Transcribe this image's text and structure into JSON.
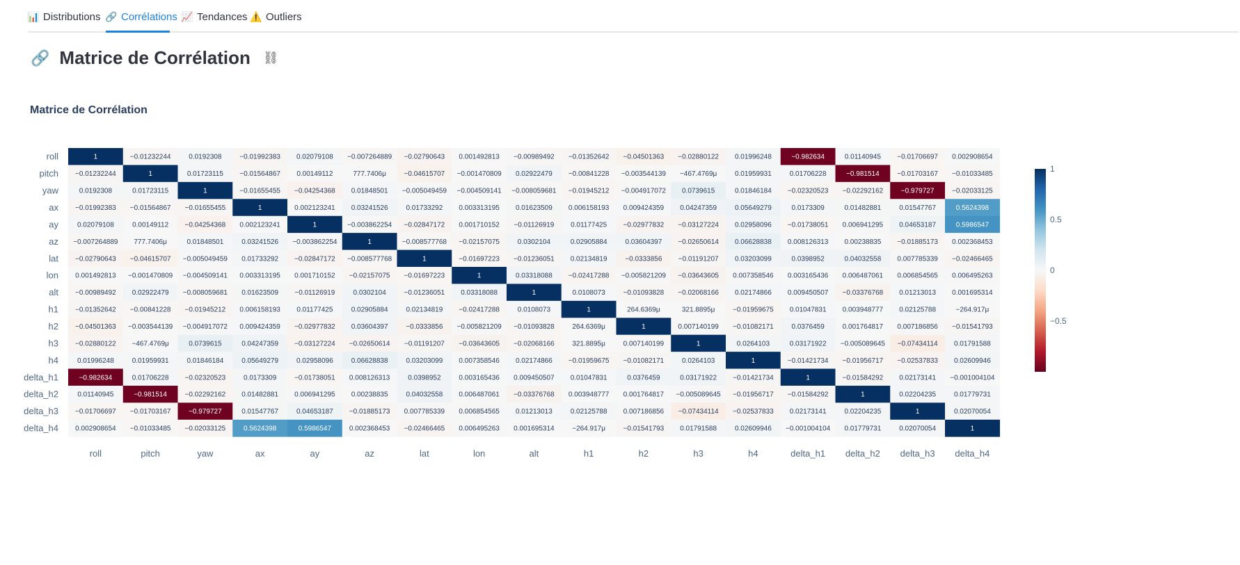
{
  "tabs": [
    {
      "label": "Distributions",
      "icon": "bar-chart-icon",
      "glyph": "📊",
      "active": false
    },
    {
      "label": "Corrélations",
      "icon": "link-icon",
      "glyph": "🔗",
      "active": true
    },
    {
      "label": "Tendances",
      "icon": "trend-chart-icon",
      "glyph": "📈",
      "active": false
    },
    {
      "label": "Outliers",
      "icon": "warning-icon",
      "glyph": "⚠️",
      "active": false
    }
  ],
  "page": {
    "title": "Matrice de Corrélation",
    "title_glyph": "🔗",
    "anchor_glyph": "⛓"
  },
  "chart_data": {
    "type": "heatmap",
    "title": "Matrice de Corrélation",
    "variables": [
      "roll",
      "pitch",
      "yaw",
      "ax",
      "ay",
      "az",
      "lat",
      "lon",
      "alt",
      "h1",
      "h2",
      "h3",
      "h4",
      "delta_h1",
      "delta_h2",
      "delta_h3",
      "delta_h4"
    ],
    "labels": [
      [
        "1",
        "−0.01232244",
        "0.0192308",
        "−0.01992383",
        "0.02079108",
        "−0.007264889",
        "−0.02790643",
        "0.001492813",
        "−0.00989492",
        "−0.01352642",
        "−0.04501363",
        "−0.02880122",
        "0.01996248",
        "−0.982634",
        "0.01140945",
        "−0.01706697",
        "0.002908654"
      ],
      [
        "−0.01232244",
        "1",
        "0.01723115",
        "−0.01564867",
        "0.00149112",
        "777.7406μ",
        "−0.04615707",
        "−0.001470809",
        "0.02922479",
        "−0.00841228",
        "−0.003544139",
        "−467.4769μ",
        "0.01959931",
        "0.01706228",
        "−0.981514",
        "−0.01703167",
        "−0.01033485"
      ],
      [
        "0.0192308",
        "0.01723115",
        "1",
        "−0.01655455",
        "−0.04254368",
        "0.01848501",
        "−0.005049459",
        "−0.004509141",
        "−0.008059681",
        "−0.01945212",
        "−0.004917072",
        "0.0739615",
        "0.01846184",
        "−0.02320523",
        "−0.02292162",
        "−0.979727",
        "−0.02033125"
      ],
      [
        "−0.01992383",
        "−0.01564867",
        "−0.01655455",
        "1",
        "0.002123241",
        "0.03241526",
        "0.01733292",
        "0.003313195",
        "0.01623509",
        "0.006158193",
        "0.009424359",
        "0.04247359",
        "0.05649279",
        "0.0173309",
        "0.01482881",
        "0.01547767",
        "0.5624398"
      ],
      [
        "0.02079108",
        "0.00149112",
        "−0.04254368",
        "0.002123241",
        "1",
        "−0.003862254",
        "−0.02847172",
        "0.001710152",
        "−0.01126919",
        "0.01177425",
        "−0.02977832",
        "−0.03127224",
        "0.02958096",
        "−0.01738051",
        "0.006941295",
        "0.04653187",
        "0.5986547"
      ],
      [
        "−0.007264889",
        "777.7406μ",
        "0.01848501",
        "0.03241526",
        "−0.003862254",
        "1",
        "−0.008577768",
        "−0.02157075",
        "0.0302104",
        "0.02905884",
        "0.03604397",
        "−0.02650614",
        "0.06628838",
        "0.008126313",
        "0.00238835",
        "−0.01885173",
        "0.002368453"
      ],
      [
        "−0.02790643",
        "−0.04615707",
        "−0.005049459",
        "0.01733292",
        "−0.02847172",
        "−0.008577768",
        "1",
        "−0.01697223",
        "−0.01236051",
        "0.02134819",
        "−0.0333856",
        "−0.01191207",
        "0.03203099",
        "0.0398952",
        "0.04032558",
        "0.007785339",
        "−0.02466465"
      ],
      [
        "0.001492813",
        "−0.001470809",
        "−0.004509141",
        "0.003313195",
        "0.001710152",
        "−0.02157075",
        "−0.01697223",
        "1",
        "0.03318088",
        "−0.02417288",
        "−0.005821209",
        "−0.03643605",
        "0.007358546",
        "0.003165436",
        "0.006487061",
        "0.006854565",
        "0.006495263"
      ],
      [
        "−0.00989492",
        "0.02922479",
        "−0.008059681",
        "0.01623509",
        "−0.01126919",
        "0.0302104",
        "−0.01236051",
        "0.03318088",
        "1",
        "0.0108073",
        "−0.01093828",
        "−0.02068166",
        "0.02174866",
        "0.009450507",
        "−0.03376768",
        "0.01213013",
        "0.001695314"
      ],
      [
        "−0.01352642",
        "−0.00841228",
        "−0.01945212",
        "0.006158193",
        "0.01177425",
        "0.02905884",
        "0.02134819",
        "−0.02417288",
        "0.0108073",
        "1",
        "264.6369μ",
        "321.8895μ",
        "−0.01959675",
        "0.01047831",
        "0.003948777",
        "0.02125788",
        "−264.917μ"
      ],
      [
        "−0.04501363",
        "−0.003544139",
        "−0.004917072",
        "0.009424359",
        "−0.02977832",
        "0.03604397",
        "−0.0333856",
        "−0.005821209",
        "−0.01093828",
        "264.6369μ",
        "1",
        "0.007140199",
        "−0.01082171",
        "0.0376459",
        "0.001764817",
        "0.007186856",
        "−0.01541793"
      ],
      [
        "−0.02880122",
        "−467.4769μ",
        "0.0739615",
        "0.04247359",
        "−0.03127224",
        "−0.02650614",
        "−0.01191207",
        "−0.03643605",
        "−0.02068166",
        "321.8895μ",
        "0.007140199",
        "1",
        "0.0264103",
        "0.03171922",
        "−0.005089645",
        "−0.07434114",
        "0.01791588"
      ],
      [
        "0.01996248",
        "0.01959931",
        "0.01846184",
        "0.05649279",
        "0.02958096",
        "0.06628838",
        "0.03203099",
        "0.007358546",
        "0.02174866",
        "−0.01959675",
        "−0.01082171",
        "0.0264103",
        "1",
        "−0.01421734",
        "−0.01956717",
        "−0.02537833",
        "0.02609946"
      ],
      [
        "−0.982634",
        "0.01706228",
        "−0.02320523",
        "0.0173309",
        "−0.01738051",
        "0.008126313",
        "0.0398952",
        "0.003165436",
        "0.009450507",
        "0.01047831",
        "0.0376459",
        "0.03171922",
        "−0.01421734",
        "1",
        "−0.01584292",
        "0.02173141",
        "−0.001004104"
      ],
      [
        "0.01140945",
        "−0.981514",
        "−0.02292162",
        "0.01482881",
        "0.006941295",
        "0.00238835",
        "0.04032558",
        "0.006487061",
        "−0.03376768",
        "0.003948777",
        "0.001764817",
        "−0.005089645",
        "−0.01956717",
        "−0.01584292",
        "1",
        "0.02204235",
        "0.01779731"
      ],
      [
        "−0.01706697",
        "−0.01703167",
        "−0.979727",
        "0.01547767",
        "0.04653187",
        "−0.01885173",
        "0.007785339",
        "0.006854565",
        "0.01213013",
        "0.02125788",
        "0.007186856",
        "−0.07434114",
        "−0.02537833",
        "0.02173141",
        "0.02204235",
        "1",
        "0.02070054"
      ],
      [
        "0.002908654",
        "−0.01033485",
        "−0.02033125",
        "0.5624398",
        "0.5986547",
        "0.002368453",
        "−0.02466465",
        "0.006495263",
        "0.001695314",
        "−264.917μ",
        "−0.01541793",
        "0.01791588",
        "0.02609946",
        "−0.001004104",
        "0.01779731",
        "0.02070054",
        "1"
      ]
    ],
    "colorscale": [
      "#67001f",
      "#b2182b",
      "#d6604d",
      "#f4a582",
      "#fddbc7",
      "#f7f7f7",
      "#d1e5f0",
      "#92c5de",
      "#4393c3",
      "#2166ac",
      "#053061"
    ],
    "zmin": -1,
    "zmax": 1,
    "colorbar_ticks": [
      "1",
      "0.5",
      "0",
      "−0.5"
    ],
    "colorbar_tick_values": [
      1,
      0.5,
      0,
      -0.5
    ]
  }
}
